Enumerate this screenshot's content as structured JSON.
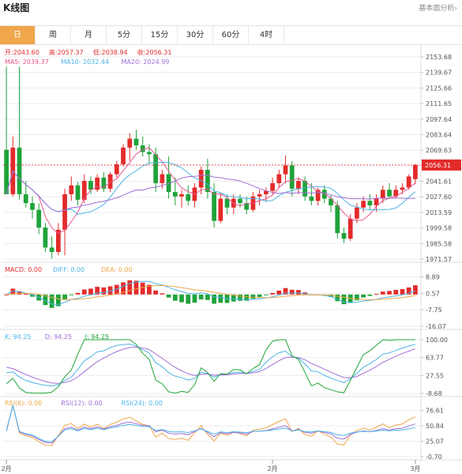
{
  "header": {
    "title": "K线图",
    "analysis_link": "基本面分析›"
  },
  "tabs": [
    {
      "label": "日",
      "active": true
    },
    {
      "label": "周"
    },
    {
      "label": "月"
    },
    {
      "label": "5分"
    },
    {
      "label": "15分"
    },
    {
      "label": "30分"
    },
    {
      "label": "60分"
    },
    {
      "label": "4时"
    }
  ],
  "colors": {
    "up": "#e32b2b",
    "down": "#1fa33a",
    "ma5": "#e8568f",
    "ma10": "#4db3e6",
    "ma20": "#a06fd6",
    "orange": "#f0a64a",
    "grid": "#ececec"
  },
  "legend": {
    "ohlc": [
      {
        "label": "开:",
        "value": "2043.60"
      },
      {
        "label": "高:",
        "value": "2057.37"
      },
      {
        "label": "低:",
        "value": "2038.94"
      },
      {
        "label": "收:",
        "value": "2056.31"
      }
    ],
    "ma": [
      {
        "label": "MA5: ",
        "value": "2039.37"
      },
      {
        "label": "MA10: ",
        "value": "2032.44"
      },
      {
        "label": "MA20: ",
        "value": "2024.99"
      }
    ],
    "macd": [
      {
        "label": "MACD: ",
        "value": "0.00"
      },
      {
        "label": "DIFF: ",
        "value": "0.00"
      },
      {
        "label": "DEA: ",
        "value": "0.00"
      }
    ],
    "kdj": [
      {
        "label": "K: ",
        "value": "94.25"
      },
      {
        "label": "D: ",
        "value": "94.25"
      },
      {
        "label": "J: ",
        "value": "94.25"
      }
    ],
    "rsi": [
      {
        "label": "RSI(6): ",
        "value": "0.00"
      },
      {
        "label": "RSI(12): ",
        "value": "0.00"
      },
      {
        "label": "RSI(24): ",
        "value": "0.00"
      }
    ]
  },
  "chart_data": [
    {
      "type": "candlestick",
      "y_ticks": [
        "2153.68",
        "2139.67",
        "2125.66",
        "2111.65",
        "2097.64",
        "2083.64",
        "2069.63",
        "2055.62",
        "2041.61",
        "2027.60",
        "2013.59",
        "1999.58",
        "1985.58",
        "1971.57"
      ],
      "ylim": [
        1971.57,
        2153.68
      ],
      "current_price": "2056.31",
      "x_labels": [
        "2月",
        "2月",
        "3月"
      ],
      "candles": [
        {
          "o": 2070,
          "h": 2145,
          "l": 2030,
          "c": 2030
        },
        {
          "o": 2030,
          "h": 2082,
          "l": 2028,
          "c": 2072
        },
        {
          "o": 2072,
          "h": 2145,
          "l": 2025,
          "c": 2030
        },
        {
          "o": 2030,
          "h": 2042,
          "l": 2018,
          "c": 2022
        },
        {
          "o": 2022,
          "h": 2028,
          "l": 2008,
          "c": 2016
        },
        {
          "o": 2016,
          "h": 2022,
          "l": 1994,
          "c": 2000
        },
        {
          "o": 2000,
          "h": 2004,
          "l": 1978,
          "c": 1982
        },
        {
          "o": 1982,
          "h": 1992,
          "l": 1972,
          "c": 1978
        },
        {
          "o": 1978,
          "h": 2004,
          "l": 1975,
          "c": 1998
        },
        {
          "o": 1998,
          "h": 2035,
          "l": 1975,
          "c": 2030
        },
        {
          "o": 2030,
          "h": 2046,
          "l": 2024,
          "c": 2038
        },
        {
          "o": 2038,
          "h": 2041,
          "l": 2020,
          "c": 2025
        },
        {
          "o": 2025,
          "h": 2048,
          "l": 2022,
          "c": 2042
        },
        {
          "o": 2042,
          "h": 2046,
          "l": 2030,
          "c": 2034
        },
        {
          "o": 2034,
          "h": 2048,
          "l": 2032,
          "c": 2045
        },
        {
          "o": 2045,
          "h": 2050,
          "l": 2032,
          "c": 2035
        },
        {
          "o": 2035,
          "h": 2050,
          "l": 2032,
          "c": 2048
        },
        {
          "o": 2048,
          "h": 2060,
          "l": 2045,
          "c": 2057
        },
        {
          "o": 2057,
          "h": 2075,
          "l": 2055,
          "c": 2072
        },
        {
          "o": 2072,
          "h": 2085,
          "l": 2060,
          "c": 2080
        },
        {
          "o": 2080,
          "h": 2088,
          "l": 2070,
          "c": 2074
        },
        {
          "o": 2074,
          "h": 2082,
          "l": 2064,
          "c": 2068
        },
        {
          "o": 2068,
          "h": 2075,
          "l": 2058,
          "c": 2066
        },
        {
          "o": 2066,
          "h": 2072,
          "l": 2032,
          "c": 2040
        },
        {
          "o": 2040,
          "h": 2052,
          "l": 2035,
          "c": 2048
        },
        {
          "o": 2048,
          "h": 2064,
          "l": 2026,
          "c": 2032
        },
        {
          "o": 2032,
          "h": 2045,
          "l": 2020,
          "c": 2028
        },
        {
          "o": 2028,
          "h": 2034,
          "l": 2018,
          "c": 2030
        },
        {
          "o": 2030,
          "h": 2038,
          "l": 2020,
          "c": 2024
        },
        {
          "o": 2024,
          "h": 2040,
          "l": 2018,
          "c": 2036
        },
        {
          "o": 2036,
          "h": 2055,
          "l": 2030,
          "c": 2052
        },
        {
          "o": 2052,
          "h": 2062,
          "l": 2026,
          "c": 2032
        },
        {
          "o": 2032,
          "h": 2040,
          "l": 2000,
          "c": 2006
        },
        {
          "o": 2006,
          "h": 2030,
          "l": 2004,
          "c": 2026
        },
        {
          "o": 2026,
          "h": 2030,
          "l": 2012,
          "c": 2018
        },
        {
          "o": 2018,
          "h": 2030,
          "l": 2012,
          "c": 2026
        },
        {
          "o": 2026,
          "h": 2030,
          "l": 2018,
          "c": 2022
        },
        {
          "o": 2022,
          "h": 2028,
          "l": 2012,
          "c": 2016
        },
        {
          "o": 2016,
          "h": 2032,
          "l": 2014,
          "c": 2028
        },
        {
          "o": 2028,
          "h": 2034,
          "l": 2020,
          "c": 2030
        },
        {
          "o": 2030,
          "h": 2036,
          "l": 2024,
          "c": 2033
        },
        {
          "o": 2033,
          "h": 2045,
          "l": 2030,
          "c": 2040
        },
        {
          "o": 2040,
          "h": 2052,
          "l": 2036,
          "c": 2048
        },
        {
          "o": 2048,
          "h": 2065,
          "l": 2040,
          "c": 2056
        },
        {
          "o": 2056,
          "h": 2060,
          "l": 2028,
          "c": 2035
        },
        {
          "o": 2035,
          "h": 2045,
          "l": 2030,
          "c": 2042
        },
        {
          "o": 2042,
          "h": 2046,
          "l": 2024,
          "c": 2028
        },
        {
          "o": 2028,
          "h": 2040,
          "l": 2020,
          "c": 2024
        },
        {
          "o": 2024,
          "h": 2036,
          "l": 2020,
          "c": 2034
        },
        {
          "o": 2034,
          "h": 2038,
          "l": 2022,
          "c": 2026
        },
        {
          "o": 2026,
          "h": 2030,
          "l": 2014,
          "c": 2020
        },
        {
          "o": 2020,
          "h": 2024,
          "l": 1990,
          "c": 1995
        },
        {
          "o": 1995,
          "h": 2000,
          "l": 1986,
          "c": 1990
        },
        {
          "o": 1990,
          "h": 2012,
          "l": 1988,
          "c": 2008
        },
        {
          "o": 2008,
          "h": 2022,
          "l": 2004,
          "c": 2018
        },
        {
          "o": 2018,
          "h": 2028,
          "l": 2014,
          "c": 2024
        },
        {
          "o": 2024,
          "h": 2030,
          "l": 2016,
          "c": 2020
        },
        {
          "o": 2020,
          "h": 2030,
          "l": 2014,
          "c": 2026
        },
        {
          "o": 2026,
          "h": 2038,
          "l": 2022,
          "c": 2034
        },
        {
          "o": 2034,
          "h": 2040,
          "l": 2026,
          "c": 2028
        },
        {
          "o": 2028,
          "h": 2038,
          "l": 2026,
          "c": 2034
        },
        {
          "o": 2034,
          "h": 2040,
          "l": 2030,
          "c": 2036
        },
        {
          "o": 2036,
          "h": 2048,
          "l": 2034,
          "c": 2046
        },
        {
          "o": 2043.6,
          "h": 2057.37,
          "l": 2038.94,
          "c": 2056.31
        }
      ]
    },
    {
      "type": "bar",
      "name": "MACD",
      "y_ticks": [
        "8.89",
        "0.57",
        "-7.75",
        "-16.07"
      ],
      "ylim": [
        -16.07,
        11.5
      ]
    },
    {
      "type": "line",
      "name": "KDJ",
      "y_ticks": [
        "100.00",
        "63.77",
        "27.55",
        "-8.68"
      ],
      "ylim": [
        -8.68,
        100
      ]
    },
    {
      "type": "line",
      "name": "RSI",
      "y_ticks": [
        "76.61",
        "50.84",
        "25.07",
        "-0.70"
      ],
      "ylim": [
        -0.7,
        84
      ]
    }
  ]
}
